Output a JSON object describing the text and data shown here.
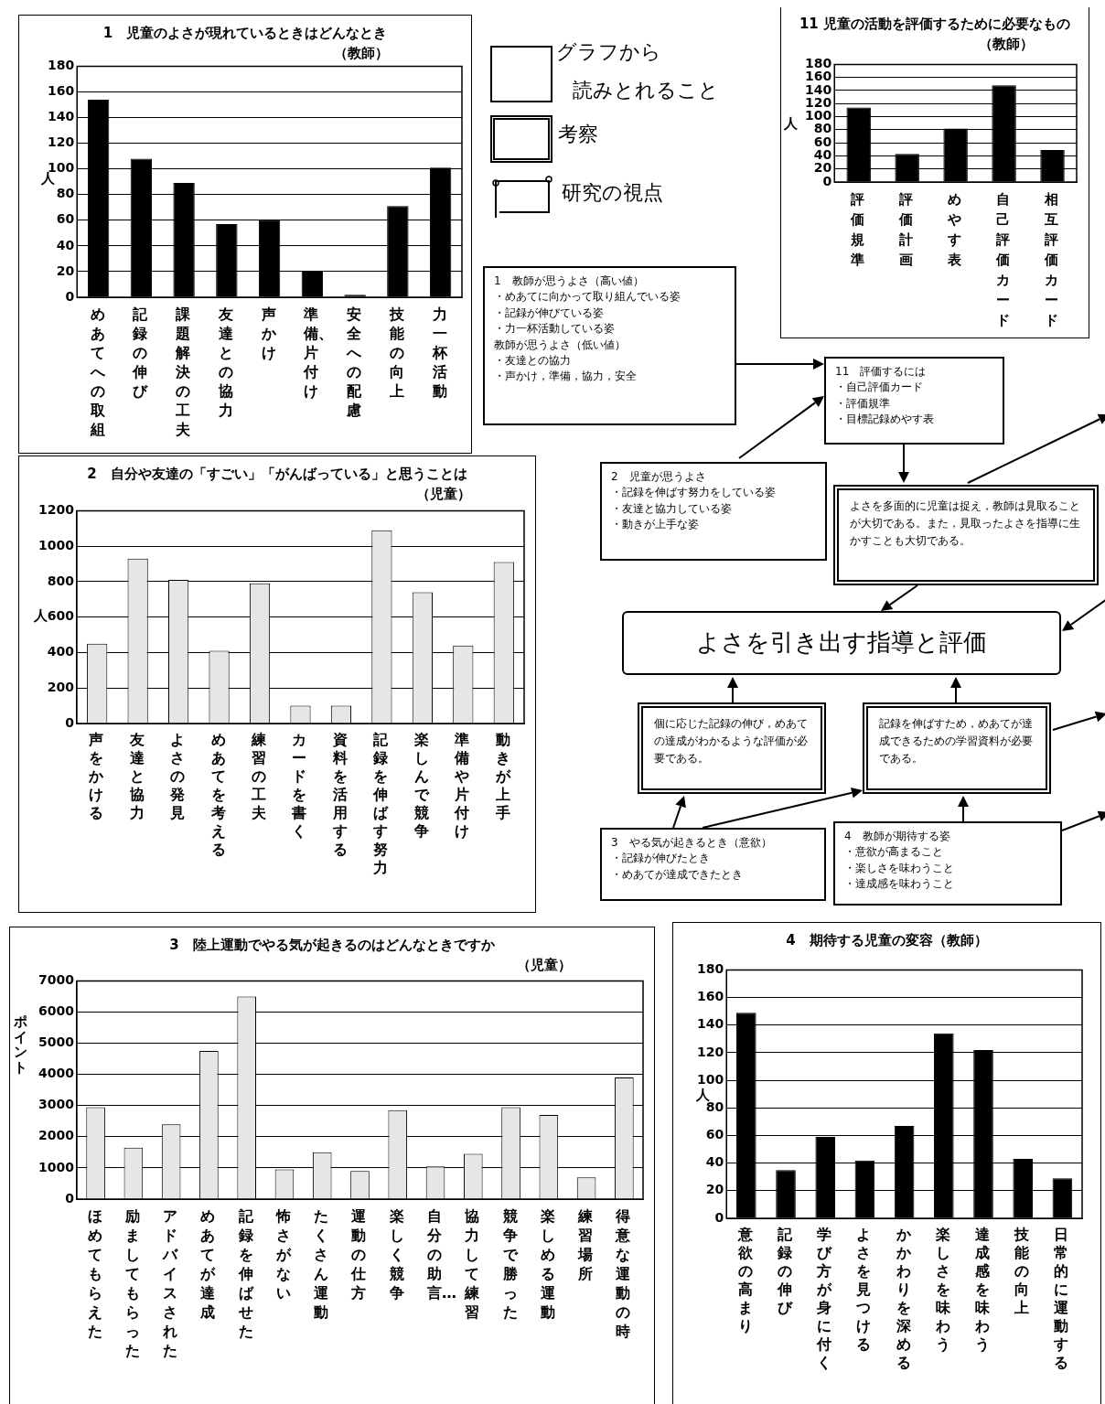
{
  "chart_data": [
    {
      "type": "bar",
      "title": "1　児童のよさが現れているときはどんなとき",
      "subtitle": "（教師）",
      "ylabel": "人",
      "categories": [
        "めあてへの取組",
        "記録の伸び",
        "課題解決の工夫",
        "友達との協力",
        "声かけ",
        "準備、片付け",
        "安全への配慮",
        "技能の向上",
        "力一杯活動"
      ],
      "values": [
        154,
        108,
        89,
        57,
        60,
        20,
        2,
        71,
        101
      ],
      "color": "#000000",
      "ylim": [
        0,
        180
      ],
      "yticks": [
        0,
        20,
        40,
        60,
        80,
        100,
        120,
        140,
        160,
        180
      ],
      "grid": "y"
    },
    {
      "type": "bar",
      "title": "11 児童の活動を評価するために必要なもの",
      "subtitle": "（教師）",
      "ylabel": "人",
      "categories": [
        "評価規準",
        "評価計画",
        "めやす表",
        "自己評価カード",
        "相互評価カード"
      ],
      "values": [
        114,
        43,
        82,
        148,
        49
      ],
      "color": "#000000",
      "ylim": [
        0,
        180
      ],
      "yticks": [
        0,
        20,
        40,
        60,
        80,
        100,
        120,
        140,
        160,
        180
      ],
      "grid": "y"
    },
    {
      "type": "bar",
      "title": "2　自分や友達の「すごい」「がんばっている」と思うことは",
      "subtitle": "（児童）",
      "ylabel": "人",
      "categories": [
        "声をかける",
        "友達と協力",
        "よさの発見",
        "めあてを考える",
        "練習の工夫",
        "カードを書く",
        "資料を活用する",
        "記録を伸ばす努力",
        "楽しんで競争",
        "準備や片付け",
        "動きが上手"
      ],
      "values": [
        450,
        930,
        810,
        410,
        790,
        100,
        100,
        1090,
        740,
        440,
        910
      ],
      "color": "#e6e6e6",
      "ylim": [
        0,
        1200
      ],
      "yticks": [
        0,
        200,
        400,
        600,
        800,
        1000,
        1200
      ],
      "grid": "y"
    },
    {
      "type": "bar",
      "title": "3　陸上運動でやる気が起きるのはどんなときですか",
      "subtitle": "（児童）",
      "ylabel": "ポイント",
      "categories": [
        "ほめてもらえた",
        "励ましてもらった",
        "アドバイスされた",
        "めあてが達成",
        "記録を伸ばせた",
        "怖さがない",
        "たくさん運動",
        "運動の仕方",
        "楽しく競争",
        "自分の助言…",
        "協力して練習",
        "競争で勝った",
        "楽しめる運動",
        "練習場所",
        "得意な運動の時"
      ],
      "values": [
        2950,
        1650,
        2400,
        4750,
        6500,
        950,
        1500,
        900,
        2850,
        1050,
        1450,
        2950,
        2700,
        700,
        3900
      ],
      "color": "#e6e6e6",
      "ylim": [
        0,
        7000
      ],
      "yticks": [
        0,
        1000,
        2000,
        3000,
        4000,
        5000,
        6000,
        7000
      ],
      "grid": "y"
    },
    {
      "type": "bar",
      "title": "4　期待する児童の変容（教師）",
      "ylabel": "人",
      "categories": [
        "意欲の高まり",
        "記録の伸び",
        "学び方が身に付く",
        "よさを見つける",
        "かかわりを深める",
        "楽しさを味わう",
        "達成感を味わう",
        "技能の向上",
        "日常的に運動する"
      ],
      "values": [
        149,
        35,
        59,
        42,
        67,
        134,
        122,
        43,
        29
      ],
      "color": "#000000",
      "ylim": [
        0,
        180
      ],
      "yticks": [
        0,
        20,
        40,
        60,
        80,
        100,
        120,
        140,
        160,
        180
      ],
      "grid": "y"
    },
    {
      "type": "other",
      "annotations": [
        "グラフから",
        "読みとれること",
        "考察",
        "研究の視点",
        "1　教師が思うよさ（高い値）",
        "・めあてに向かって取り組んでいる姿",
        "・記録が伸びている姿",
        "・力一杯活動している姿",
        "教師が思うよさ（低い値）",
        "・友達との協力",
        "・声かけ，準備，協力，安全",
        "11　評価するには",
        "・自己評価カード",
        "・評価規準",
        "・目標記録めやす表",
        "2　児童が思うよさ",
        "・記録を伸ばす努力をしている姿",
        "・友達と協力している姿",
        "・動きが上手な姿",
        "よさを多面的に児童は捉え，教師は見取ることが大切である。また，見取ったよさを指導に生かすことも大切である。",
        "よさを引き出す指導と評価",
        "個に応じた記録の伸び，めあての達成がわかるような評価が必要である。",
        "記録を伸ばすため，めあてが達成できるための学習資料が必要である。",
        "3　やる気が起きるとき（意欲）",
        "・記録が伸びたとき",
        "・めあてが達成できたとき",
        "4　教師が期待する姿",
        "・意欲が高まること",
        "・楽しさを味わうこと",
        "・達成感を味わうこと"
      ]
    }
  ]
}
